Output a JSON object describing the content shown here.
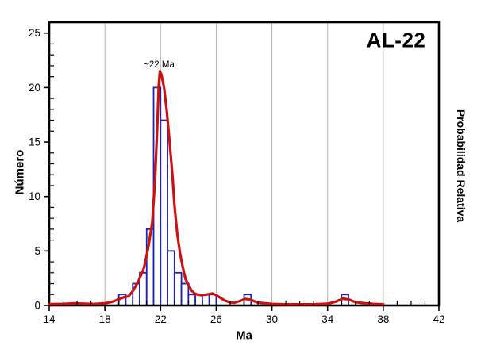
{
  "chart_data": {
    "type": "bar",
    "title": "AL-22",
    "xlabel": "Ma",
    "ylabel": "Número",
    "ylabel_right": "Probabilidad Relativa",
    "xlim": [
      14,
      42
    ],
    "ylim": [
      0,
      26
    ],
    "x_major_ticks": [
      14,
      18,
      22,
      26,
      30,
      34,
      38,
      42
    ],
    "x_minor_step": 1,
    "y_major_ticks": [
      0,
      5,
      10,
      15,
      20,
      25
    ],
    "y_minor_step": 1,
    "grid_x": [
      18,
      22,
      26,
      30,
      34,
      38
    ],
    "grid_on": true,
    "legend": "none",
    "annotation": {
      "text": "~22 Ma",
      "x": 21.9,
      "y": 22.1
    },
    "bin_width": 0.5,
    "bars": [
      {
        "x0": 19.0,
        "count": 1
      },
      {
        "x0": 20.0,
        "count": 2
      },
      {
        "x0": 20.5,
        "count": 3
      },
      {
        "x0": 21.0,
        "count": 7
      },
      {
        "x0": 21.5,
        "count": 20
      },
      {
        "x0": 22.0,
        "count": 17
      },
      {
        "x0": 22.5,
        "count": 5
      },
      {
        "x0": 23.0,
        "count": 3
      },
      {
        "x0": 23.5,
        "count": 2
      },
      {
        "x0": 24.0,
        "count": 1
      },
      {
        "x0": 24.5,
        "count": 1
      },
      {
        "x0": 25.0,
        "count": 1
      },
      {
        "x0": 25.5,
        "count": 1
      },
      {
        "x0": 28.0,
        "count": 1
      },
      {
        "x0": 35.0,
        "count": 1
      }
    ],
    "density_curve": {
      "name": "relative-probability-curve",
      "points": [
        [
          14.0,
          0.12
        ],
        [
          15.0,
          0.14
        ],
        [
          15.8,
          0.19
        ],
        [
          16.5,
          0.15
        ],
        [
          17.2,
          0.13
        ],
        [
          18.0,
          0.2
        ],
        [
          18.5,
          0.32
        ],
        [
          19.0,
          0.55
        ],
        [
          19.3,
          0.72
        ],
        [
          19.7,
          0.85
        ],
        [
          20.0,
          1.3
        ],
        [
          20.4,
          2.2
        ],
        [
          20.8,
          3.4
        ],
        [
          21.1,
          5.2
        ],
        [
          21.4,
          7.6
        ],
        [
          21.6,
          11.5
        ],
        [
          21.75,
          16.0
        ],
        [
          21.87,
          20.2
        ],
        [
          21.95,
          21.5
        ],
        [
          22.06,
          21.2
        ],
        [
          22.25,
          20.0
        ],
        [
          22.45,
          17.8
        ],
        [
          22.65,
          15.0
        ],
        [
          22.85,
          12.0
        ],
        [
          23.0,
          9.2
        ],
        [
          23.2,
          6.6
        ],
        [
          23.4,
          4.8
        ],
        [
          23.6,
          3.5
        ],
        [
          23.8,
          2.4
        ],
        [
          24.0,
          1.9
        ],
        [
          24.2,
          1.4
        ],
        [
          24.5,
          1.05
        ],
        [
          24.9,
          0.95
        ],
        [
          25.3,
          1.0
        ],
        [
          25.7,
          1.1
        ],
        [
          26.0,
          0.95
        ],
        [
          26.3,
          0.7
        ],
        [
          26.6,
          0.45
        ],
        [
          27.0,
          0.28
        ],
        [
          27.3,
          0.25
        ],
        [
          27.7,
          0.4
        ],
        [
          28.1,
          0.6
        ],
        [
          28.5,
          0.5
        ],
        [
          28.9,
          0.3
        ],
        [
          29.3,
          0.22
        ],
        [
          30.0,
          0.14
        ],
        [
          31.0,
          0.1
        ],
        [
          32.0,
          0.1
        ],
        [
          33.0,
          0.1
        ],
        [
          34.0,
          0.15
        ],
        [
          34.6,
          0.35
        ],
        [
          35.1,
          0.62
        ],
        [
          35.5,
          0.55
        ],
        [
          36.0,
          0.3
        ],
        [
          36.7,
          0.2
        ],
        [
          37.3,
          0.14
        ],
        [
          38.0,
          0.1
        ]
      ]
    },
    "colors": {
      "curve": "#cc1111",
      "bar_edge": "#2222b2",
      "bar_fill": "#ffffff",
      "grid": "#b3b3b3",
      "axis": "#000000",
      "background": "#ffffff",
      "text": "#000000"
    }
  }
}
